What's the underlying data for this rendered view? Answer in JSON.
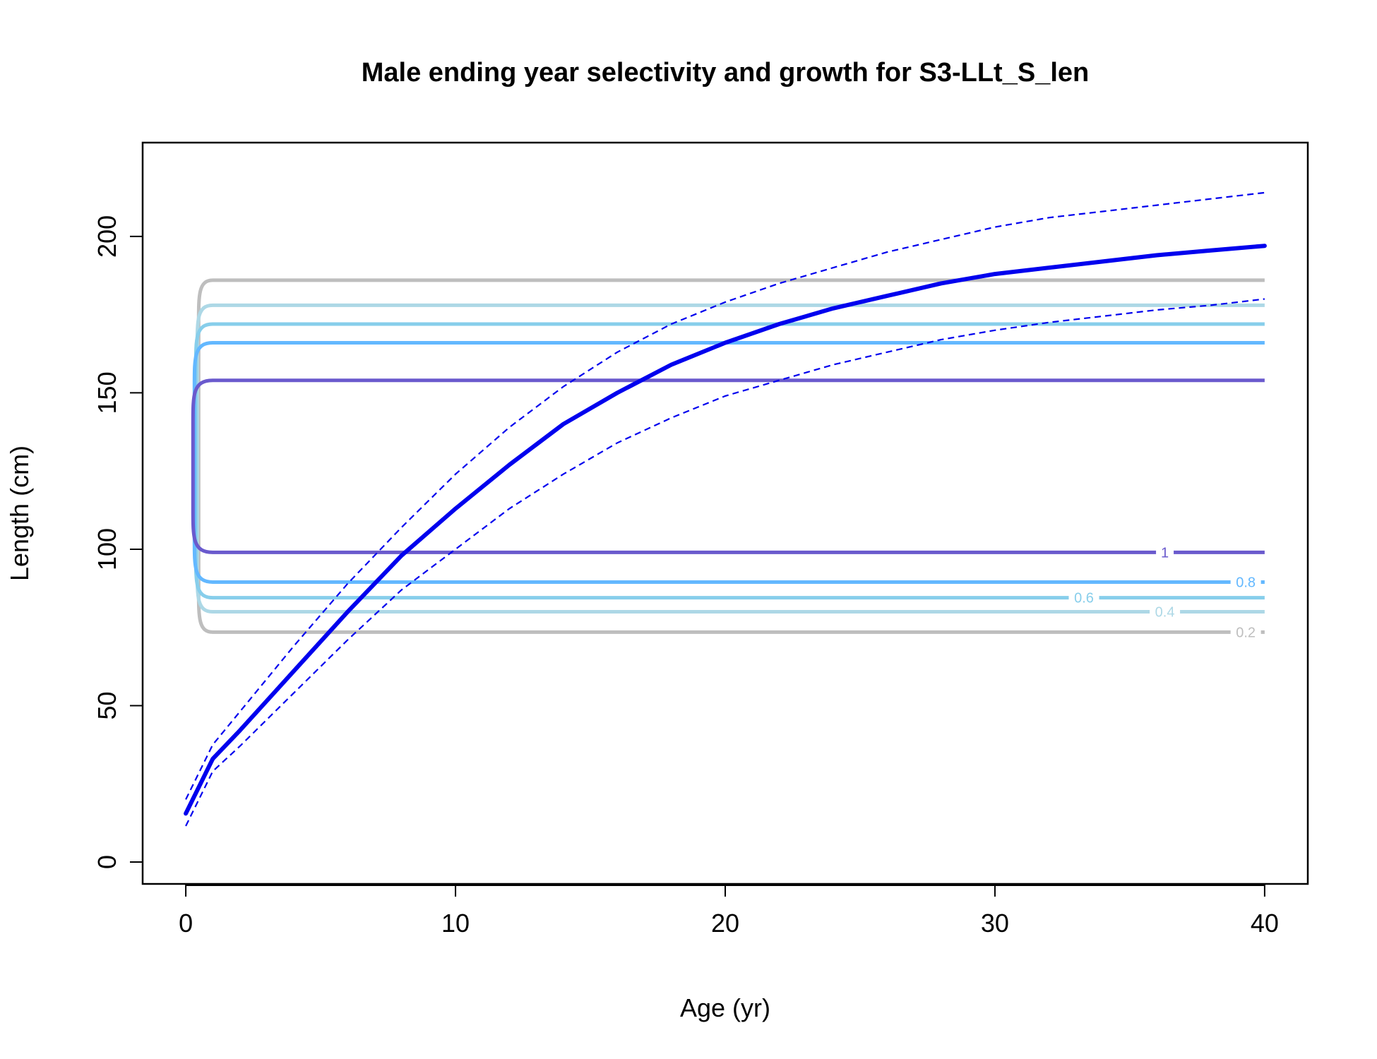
{
  "chart_data": {
    "type": "line",
    "title": "Male ending year selectivity and growth for S3-LLt_S_len",
    "xlabel": "Age (yr)",
    "ylabel": "Length (cm)",
    "xlim": [
      -1.6,
      41.6
    ],
    "ylim": [
      -7,
      230
    ],
    "xticks": [
      0,
      10,
      20,
      30,
      40
    ],
    "yticks": [
      0,
      50,
      100,
      150,
      200
    ],
    "grid": false,
    "legend": "none",
    "colors": {
      "growth": "#0000ee",
      "c02": "#bebebe",
      "c04": "#add8e6",
      "c06": "#87ceeb",
      "c08": "#63b8ff",
      "c1": "#6a5acd"
    },
    "growth": {
      "x": [
        0,
        1,
        2,
        4,
        6,
        8,
        10,
        12,
        14,
        16,
        18,
        20,
        22,
        24,
        26,
        28,
        30,
        32,
        34,
        36,
        38,
        40
      ],
      "mean": [
        15.5,
        33,
        42,
        61,
        80,
        98,
        113,
        127,
        140,
        150,
        159,
        166,
        172,
        177,
        181,
        185,
        188,
        190,
        192,
        194,
        195.5,
        197
      ],
      "upper": [
        20,
        37.5,
        48,
        69,
        89,
        107,
        124,
        139,
        152,
        163,
        172,
        179,
        185,
        190,
        195,
        199,
        203,
        206,
        208,
        210,
        212,
        214
      ],
      "lower": [
        11.5,
        29,
        37,
        54,
        71,
        87,
        100,
        113,
        124,
        134,
        142,
        149,
        154,
        159,
        163,
        167,
        170,
        172.5,
        174.5,
        176.5,
        178,
        180
      ]
    },
    "contours": [
      {
        "level": 0.2,
        "label": "0.2",
        "color": "#bebebe",
        "low": 73.5,
        "high": 186,
        "label_x": 39.3,
        "label_side": "low"
      },
      {
        "level": 0.4,
        "label": "0.4",
        "color": "#add8e6",
        "low": 80,
        "high": 178,
        "label_x": 36.3,
        "label_side": "low"
      },
      {
        "level": 0.6,
        "label": "0.6",
        "color": "#87ceeb",
        "low": 84.5,
        "high": 172,
        "label_x": 33.3,
        "label_side": "low"
      },
      {
        "level": 0.8,
        "label": "0.8",
        "color": "#63b8ff",
        "low": 89.5,
        "high": 166,
        "label_x": 39.3,
        "label_side": "low"
      },
      {
        "level": 1,
        "label": "1",
        "color": "#6a5acd",
        "low": 99,
        "high": 154,
        "label_x": 36.3,
        "label_side": "low"
      }
    ]
  }
}
